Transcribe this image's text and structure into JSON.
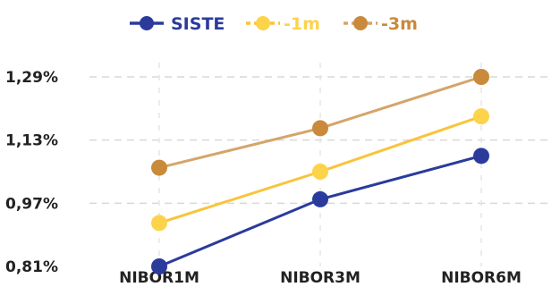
{
  "chart_data": {
    "type": "line",
    "categories": [
      "NIBOR1M",
      "NIBOR3M",
      "NIBOR6M"
    ],
    "series": [
      {
        "name": "SISTE",
        "values": [
          0.81,
          0.98,
          1.09
        ],
        "color": "#2a3b9c"
      },
      {
        "name": "-1m",
        "values": [
          0.92,
          1.05,
          1.19
        ],
        "color": "#fdd34a"
      },
      {
        "name": "-3m",
        "values": [
          1.06,
          1.16,
          1.29
        ],
        "color": "#c98a3c"
      }
    ],
    "y_ticks": [
      {
        "value": 0.81,
        "label": "0,81%"
      },
      {
        "value": 0.97,
        "label": "0,97%"
      },
      {
        "value": 1.13,
        "label": "1,13%"
      },
      {
        "value": 1.29,
        "label": "1,29%"
      }
    ],
    "ylim": [
      0.81,
      1.29
    ],
    "grid": true,
    "legend_position": "top",
    "line_colors": {
      "siste": "#2a3b9c",
      "m1": "#f9c43a",
      "m3": "#d4a56a"
    },
    "marker_colors": {
      "siste": "#2a3b9c",
      "m1": "#fdd34a",
      "m3": "#c98a3c"
    }
  }
}
